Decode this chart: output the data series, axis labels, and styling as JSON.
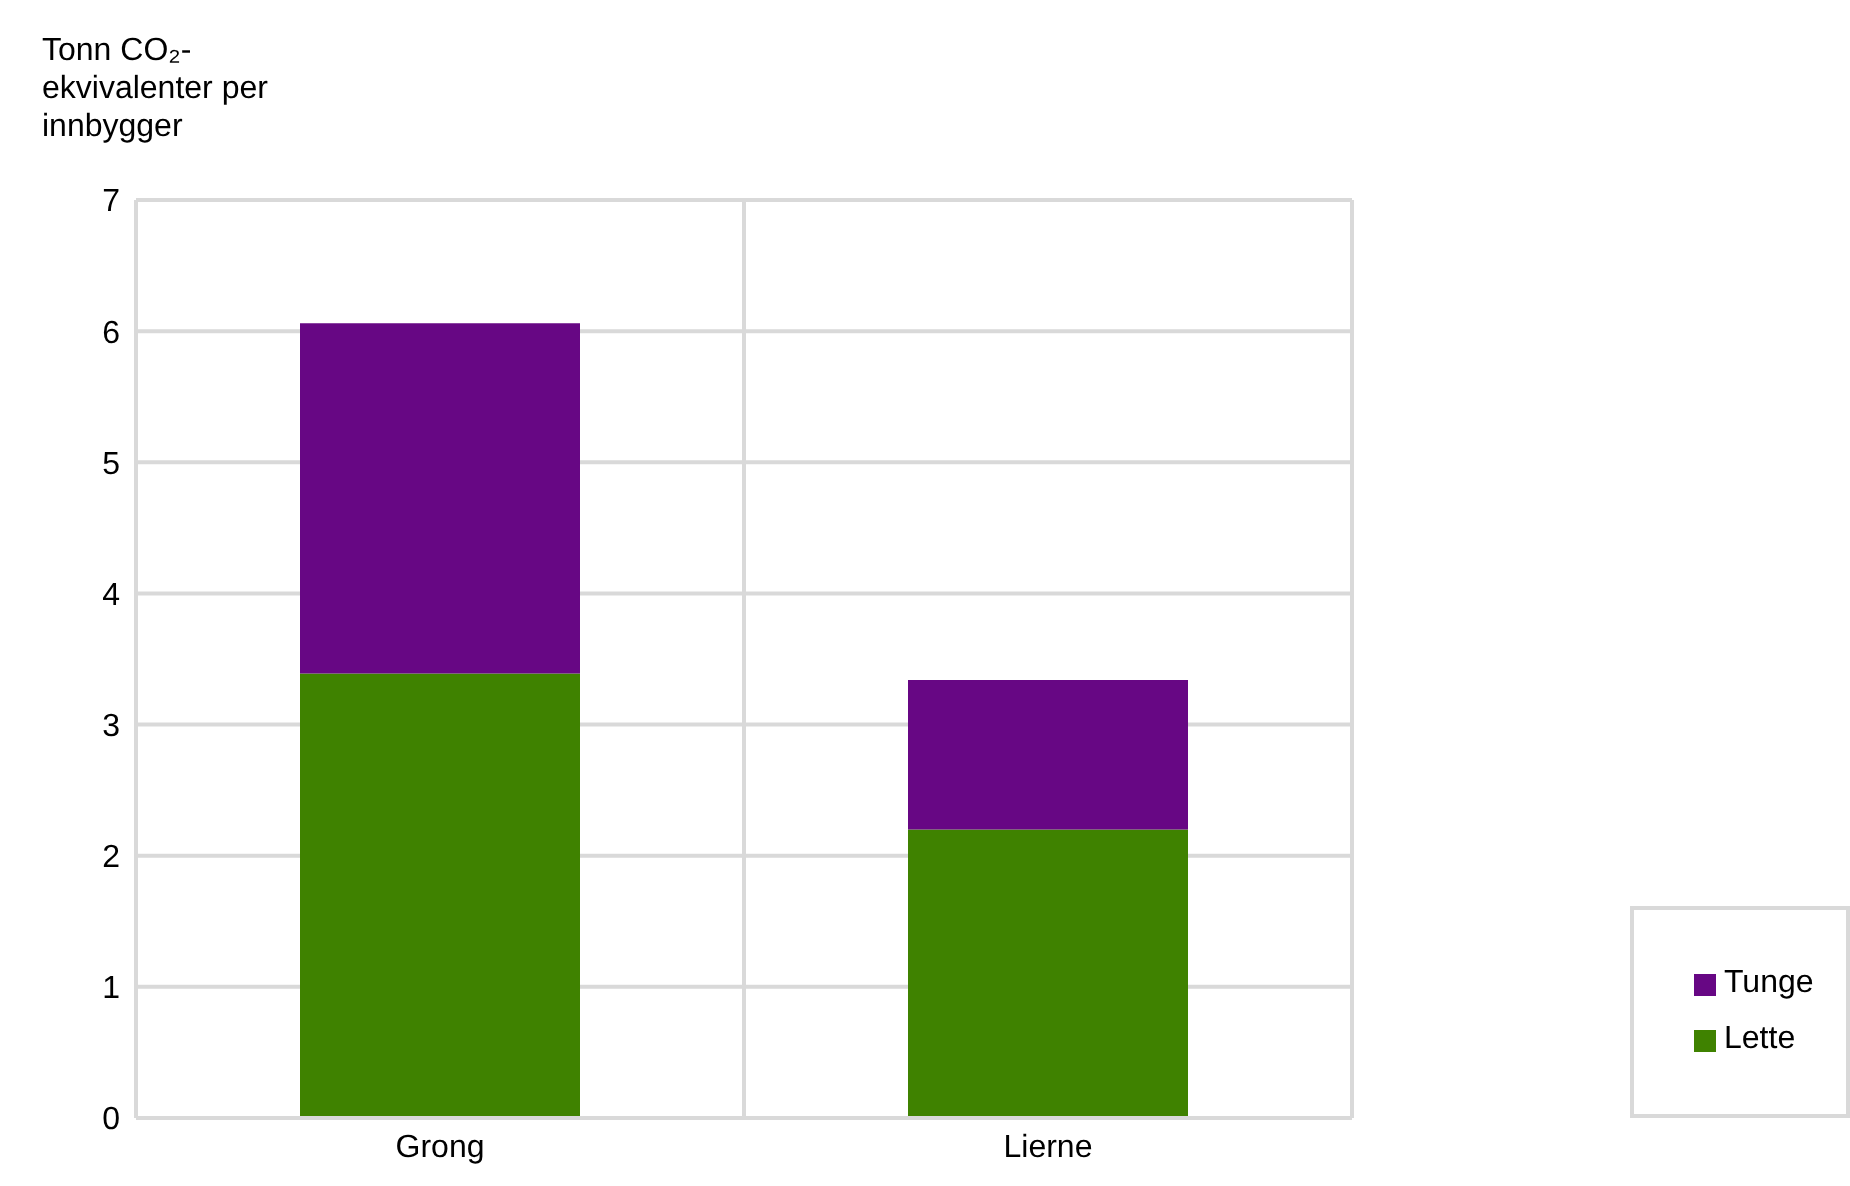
{
  "chart_data": {
    "type": "bar",
    "ylabel": "Tonn CO₂-ekvivalenter per innbygger",
    "categories": [
      "Grong",
      "Lierne"
    ],
    "series": [
      {
        "name": "Lette",
        "color": "#3f8200",
        "values": [
          3.39,
          2.2
        ]
      },
      {
        "name": "Tunge",
        "color": "#670784",
        "values": [
          2.67,
          1.14
        ]
      }
    ],
    "stacked": true,
    "ylim": [
      0,
      7
    ],
    "yticks": [
      0,
      1,
      2,
      3,
      4,
      5,
      6,
      7
    ],
    "grid": true,
    "legend": "bottom right"
  }
}
